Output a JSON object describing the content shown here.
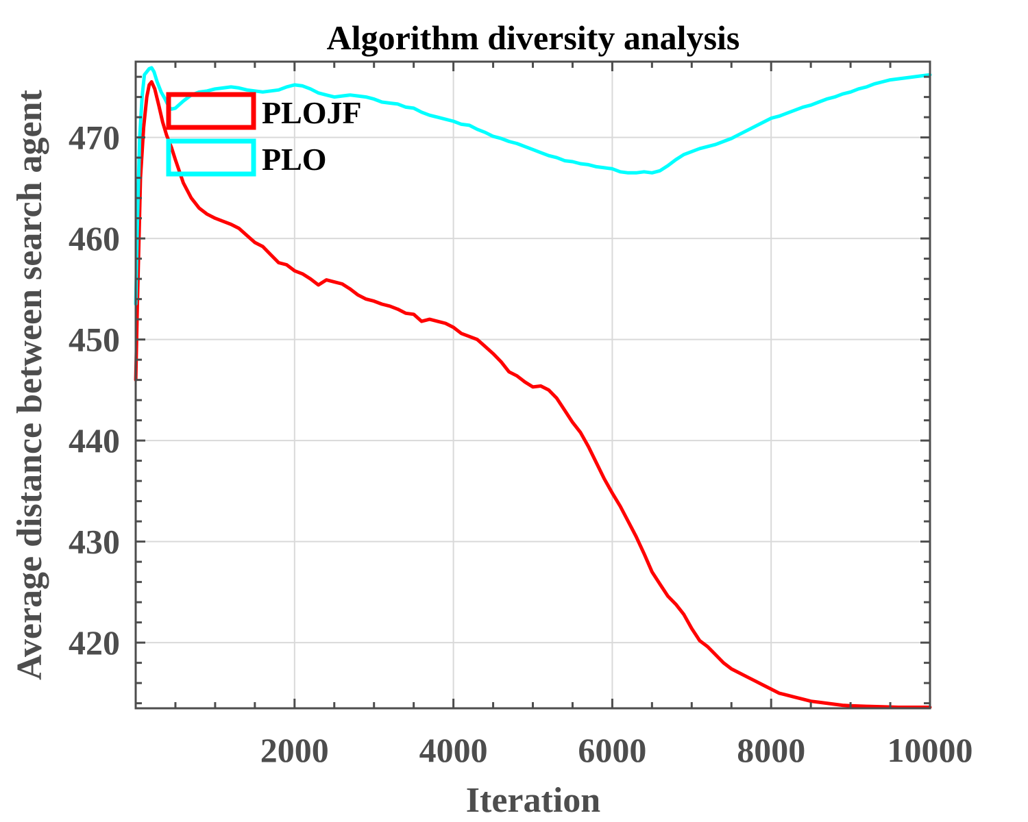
{
  "chart_data": {
    "type": "line",
    "title": "Algorithm diversity analysis",
    "xlabel": "Iteration",
    "ylabel": "Average distance between search agent",
    "xlim": [
      0,
      10000
    ],
    "ylim": [
      413.5,
      477.5
    ],
    "xticks": [
      2000,
      4000,
      6000,
      8000,
      10000
    ],
    "xtick_labels": [
      "2000",
      "4000",
      "6000",
      "8000",
      "10000"
    ],
    "yticks": [
      420,
      430,
      440,
      450,
      460,
      470
    ],
    "ytick_labels": [
      "420",
      "430",
      "440",
      "450",
      "460",
      "470"
    ],
    "grid": true,
    "legend_position": "top-left",
    "series": [
      {
        "name": "PLOJF",
        "color": "#ff0000",
        "points": [
          [
            1,
            446
          ],
          [
            20,
            453
          ],
          [
            60,
            466
          ],
          [
            100,
            471
          ],
          [
            140,
            474
          ],
          [
            170,
            475.2
          ],
          [
            200,
            475.5
          ],
          [
            240,
            474.8
          ],
          [
            290,
            473.2
          ],
          [
            340,
            471.5
          ],
          [
            390,
            470.2
          ],
          [
            450,
            469
          ],
          [
            500,
            467.8
          ],
          [
            600,
            465.5
          ],
          [
            700,
            464
          ],
          [
            800,
            463
          ],
          [
            900,
            462.4
          ],
          [
            1000,
            462
          ],
          [
            1100,
            461.7
          ],
          [
            1200,
            461.4
          ],
          [
            1300,
            461
          ],
          [
            1400,
            460.3
          ],
          [
            1500,
            459.6
          ],
          [
            1600,
            459.2
          ],
          [
            1700,
            458.4
          ],
          [
            1800,
            457.6
          ],
          [
            1900,
            457.4
          ],
          [
            2000,
            456.8
          ],
          [
            2100,
            456.5
          ],
          [
            2200,
            456
          ],
          [
            2300,
            455.4
          ],
          [
            2400,
            455.9
          ],
          [
            2500,
            455.7
          ],
          [
            2600,
            455.5
          ],
          [
            2700,
            455
          ],
          [
            2800,
            454.4
          ],
          [
            2900,
            454
          ],
          [
            3000,
            453.8
          ],
          [
            3100,
            453.5
          ],
          [
            3200,
            453.3
          ],
          [
            3300,
            453
          ],
          [
            3400,
            452.6
          ],
          [
            3500,
            452.5
          ],
          [
            3600,
            451.8
          ],
          [
            3700,
            452
          ],
          [
            3800,
            451.8
          ],
          [
            3900,
            451.6
          ],
          [
            4000,
            451.2
          ],
          [
            4100,
            450.6
          ],
          [
            4200,
            450.3
          ],
          [
            4300,
            450
          ],
          [
            4400,
            449.3
          ],
          [
            4500,
            448.6
          ],
          [
            4600,
            447.8
          ],
          [
            4700,
            446.8
          ],
          [
            4800,
            446.4
          ],
          [
            4900,
            445.8
          ],
          [
            5000,
            445.3
          ],
          [
            5100,
            445.4
          ],
          [
            5200,
            445
          ],
          [
            5300,
            444.2
          ],
          [
            5400,
            443
          ],
          [
            5500,
            441.8
          ],
          [
            5600,
            440.8
          ],
          [
            5700,
            439.4
          ],
          [
            5800,
            437.8
          ],
          [
            5900,
            436.2
          ],
          [
            6000,
            434.8
          ],
          [
            6100,
            433.5
          ],
          [
            6200,
            432
          ],
          [
            6300,
            430.5
          ],
          [
            6400,
            428.8
          ],
          [
            6500,
            427
          ],
          [
            6600,
            425.8
          ],
          [
            6700,
            424.6
          ],
          [
            6800,
            423.8
          ],
          [
            6900,
            422.8
          ],
          [
            7000,
            421.4
          ],
          [
            7100,
            420.2
          ],
          [
            7200,
            419.6
          ],
          [
            7300,
            418.8
          ],
          [
            7400,
            418
          ],
          [
            7500,
            417.4
          ],
          [
            7600,
            417
          ],
          [
            7700,
            416.6
          ],
          [
            7800,
            416.2
          ],
          [
            7900,
            415.8
          ],
          [
            8000,
            415.4
          ],
          [
            8100,
            415
          ],
          [
            8200,
            414.8
          ],
          [
            8300,
            414.6
          ],
          [
            8400,
            414.4
          ],
          [
            8500,
            414.2
          ],
          [
            8600,
            414.1
          ],
          [
            8700,
            414
          ],
          [
            8800,
            413.9
          ],
          [
            8900,
            413.8
          ],
          [
            9000,
            413.75
          ],
          [
            9200,
            413.7
          ],
          [
            9400,
            413.65
          ],
          [
            9600,
            413.6
          ],
          [
            9800,
            413.6
          ],
          [
            10000,
            413.6
          ]
        ]
      },
      {
        "name": "PLO",
        "color": "#00ffff",
        "points": [
          [
            1,
            453.5
          ],
          [
            20,
            461
          ],
          [
            50,
            470
          ],
          [
            80,
            474
          ],
          [
            110,
            476.2
          ],
          [
            140,
            476.5
          ],
          [
            170,
            476.8
          ],
          [
            200,
            476.9
          ],
          [
            230,
            476.5
          ],
          [
            270,
            475.5
          ],
          [
            320,
            474.5
          ],
          [
            370,
            473.8
          ],
          [
            420,
            473
          ],
          [
            450,
            472.8
          ],
          [
            500,
            472.9
          ],
          [
            600,
            473.6
          ],
          [
            700,
            474.2
          ],
          [
            800,
            474.5
          ],
          [
            900,
            474.6
          ],
          [
            1000,
            474.8
          ],
          [
            1100,
            474.9
          ],
          [
            1200,
            475
          ],
          [
            1300,
            474.9
          ],
          [
            1400,
            474.7
          ],
          [
            1500,
            474.6
          ],
          [
            1600,
            474.5
          ],
          [
            1700,
            474.6
          ],
          [
            1800,
            474.7
          ],
          [
            1900,
            475
          ],
          [
            2000,
            475.2
          ],
          [
            2100,
            475.1
          ],
          [
            2200,
            474.8
          ],
          [
            2300,
            474.4
          ],
          [
            2400,
            474.2
          ],
          [
            2500,
            474
          ],
          [
            2600,
            474.1
          ],
          [
            2700,
            474.2
          ],
          [
            2800,
            474.1
          ],
          [
            2900,
            474
          ],
          [
            3000,
            473.8
          ],
          [
            3100,
            473.5
          ],
          [
            3200,
            473.4
          ],
          [
            3300,
            473.3
          ],
          [
            3400,
            473
          ],
          [
            3500,
            472.9
          ],
          [
            3600,
            472.5
          ],
          [
            3700,
            472.2
          ],
          [
            3800,
            472
          ],
          [
            3900,
            471.8
          ],
          [
            4000,
            471.6
          ],
          [
            4100,
            471.3
          ],
          [
            4200,
            471.2
          ],
          [
            4300,
            470.8
          ],
          [
            4400,
            470.5
          ],
          [
            4500,
            470.1
          ],
          [
            4600,
            469.9
          ],
          [
            4700,
            469.6
          ],
          [
            4800,
            469.4
          ],
          [
            4900,
            469.1
          ],
          [
            5000,
            468.8
          ],
          [
            5100,
            468.5
          ],
          [
            5200,
            468.2
          ],
          [
            5300,
            468
          ],
          [
            5400,
            467.7
          ],
          [
            5500,
            467.6
          ],
          [
            5600,
            467.4
          ],
          [
            5700,
            467.3
          ],
          [
            5800,
            467.1
          ],
          [
            5900,
            467
          ],
          [
            6000,
            466.9
          ],
          [
            6100,
            466.6
          ],
          [
            6200,
            466.5
          ],
          [
            6300,
            466.5
          ],
          [
            6400,
            466.6
          ],
          [
            6500,
            466.5
          ],
          [
            6600,
            466.7
          ],
          [
            6700,
            467.2
          ],
          [
            6800,
            467.8
          ],
          [
            6900,
            468.3
          ],
          [
            7000,
            468.6
          ],
          [
            7100,
            468.9
          ],
          [
            7200,
            469.1
          ],
          [
            7300,
            469.3
          ],
          [
            7400,
            469.6
          ],
          [
            7500,
            469.9
          ],
          [
            7600,
            470.3
          ],
          [
            7700,
            470.7
          ],
          [
            7800,
            471.1
          ],
          [
            7900,
            471.5
          ],
          [
            8000,
            471.9
          ],
          [
            8100,
            472.1
          ],
          [
            8200,
            472.4
          ],
          [
            8300,
            472.7
          ],
          [
            8400,
            473
          ],
          [
            8500,
            473.2
          ],
          [
            8600,
            473.5
          ],
          [
            8700,
            473.8
          ],
          [
            8800,
            474
          ],
          [
            8900,
            474.3
          ],
          [
            9000,
            474.5
          ],
          [
            9100,
            474.8
          ],
          [
            9200,
            475
          ],
          [
            9300,
            475.3
          ],
          [
            9400,
            475.5
          ],
          [
            9500,
            475.7
          ],
          [
            9600,
            475.8
          ],
          [
            9700,
            475.9
          ],
          [
            9800,
            476
          ],
          [
            9900,
            476.1
          ],
          [
            10000,
            476.2
          ]
        ]
      }
    ]
  }
}
